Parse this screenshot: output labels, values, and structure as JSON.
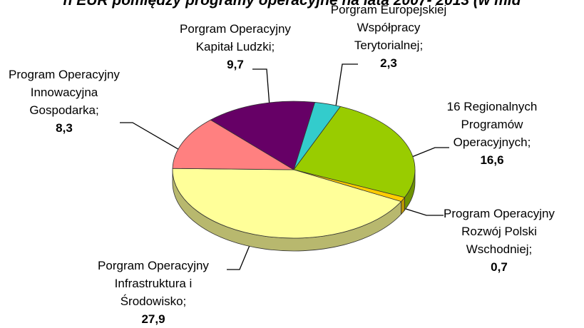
{
  "chart_data": {
    "type": "pie3d",
    "title": "h EUR pomiędzy programy operacyjne na lata 2007- 2013 (w mld",
    "categories": [
      "Porgram Europejskiej\nWspółpracy\nTerytorialnej;",
      "16 Regionalnych\nProgramów\nOperacyjnych;",
      "Program Operacyjny\nRozwój Polski\nWschodniej;",
      "Porgram Operacyjny\nInfrastruktura i\nŚrodowisko;",
      "Program Operacyjny\nInnowacyjna\nGospodarka;",
      "Porgram Operacyjny\nKapitał Ludzki;"
    ],
    "values": [
      2.3,
      16.6,
      0.7,
      27.9,
      8.3,
      9.7
    ],
    "value_labels": [
      "2,3",
      "16,6",
      "0,7",
      "27,9",
      "8,3",
      "9,7"
    ],
    "colors": [
      "#33cccc",
      "#99cc00",
      "#ffcc00",
      "#ffff99",
      "#ff8080",
      "#660066"
    ]
  }
}
